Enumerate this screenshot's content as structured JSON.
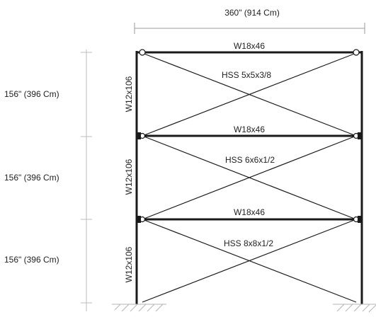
{
  "dimensions": {
    "width_label": "360\" (914 Cm)",
    "story_heights": [
      "156\" (396 Cm)",
      "156\" (396 Cm)",
      "156\" (396 Cm)"
    ]
  },
  "members": {
    "beams": [
      "W18x46",
      "W18x46",
      "W18x46"
    ],
    "braces": [
      "HSS 5x5x3/8",
      "HSS 6x6x1/2",
      "HSS 8x8x1/2"
    ],
    "columns": [
      "W12x106",
      "W12x106",
      "W12x106"
    ]
  },
  "colors": {
    "member": "#1a1a1a",
    "dimension": "#9a9a9a",
    "text": "#222222"
  }
}
